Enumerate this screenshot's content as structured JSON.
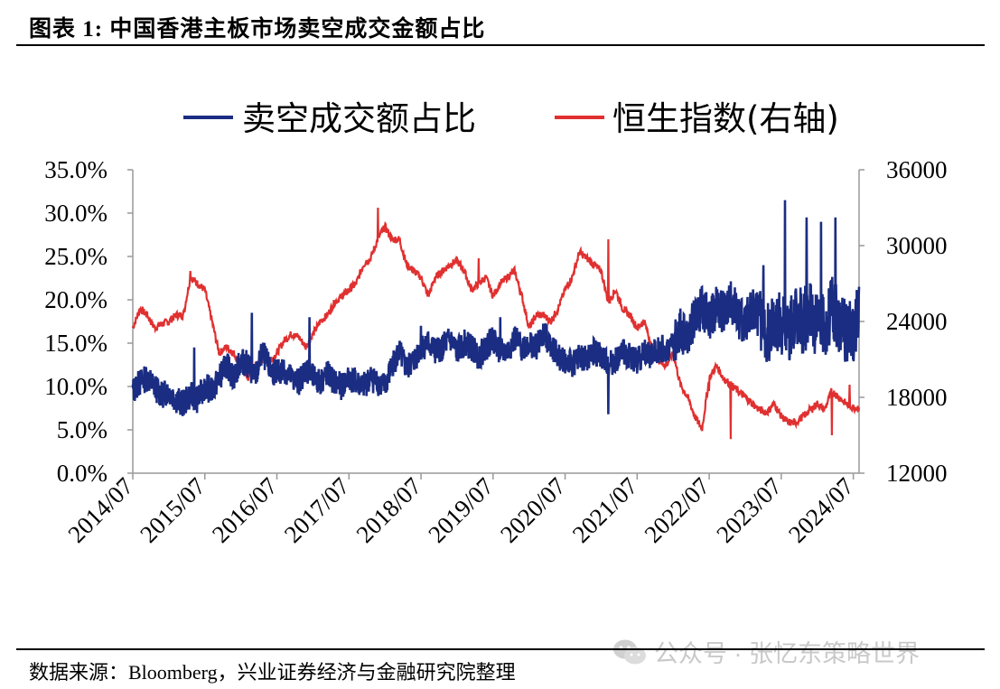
{
  "figure": {
    "title": "图表 1:  中国香港主板市场卖空成交金额占比",
    "source": "数据来源：Bloomberg，兴业证券经济与金融研究院整理",
    "watermark": "公众号 · 张忆东策略世界"
  },
  "colors": {
    "short_ratio": "#1b2d82",
    "hsi": "#e03030",
    "axis": "#999999"
  },
  "chart_data": {
    "type": "line",
    "title": "",
    "legend": {
      "position": "top-center",
      "entries": [
        "卖空成交额占比",
        "恒生指数(右轴)"
      ]
    },
    "x_tick_labels": [
      "2014/07",
      "2015/07",
      "2016/07",
      "2017/07",
      "2018/07",
      "2019/07",
      "2020/07",
      "2021/07",
      "2022/07",
      "2023/07",
      "2024/07"
    ],
    "x_range": [
      2014.5,
      2024.58
    ],
    "y_left": {
      "min": 0,
      "max": 35,
      "ticks": [
        "0.0%",
        "5.0%",
        "10.0%",
        "15.0%",
        "20.0%",
        "25.0%",
        "30.0%",
        "35.0%"
      ]
    },
    "y_right": {
      "min": 12000,
      "max": 36000,
      "ticks": [
        "12000",
        "18000",
        "24000",
        "30000",
        "36000"
      ]
    },
    "series": [
      {
        "name": "卖空成交额占比",
        "axis": "left",
        "x": [
          2014.5,
          2014.6,
          2014.7,
          2014.8,
          2014.9,
          2015.0,
          2015.1,
          2015.2,
          2015.3,
          2015.4,
          2015.5,
          2015.6,
          2015.7,
          2015.8,
          2015.9,
          2016.0,
          2016.1,
          2016.2,
          2016.3,
          2016.4,
          2016.5,
          2016.6,
          2016.7,
          2016.8,
          2016.9,
          2017.0,
          2017.1,
          2017.2,
          2017.3,
          2017.4,
          2017.5,
          2017.6,
          2017.7,
          2017.8,
          2017.9,
          2018.0,
          2018.1,
          2018.2,
          2018.3,
          2018.4,
          2018.5,
          2018.6,
          2018.7,
          2018.8,
          2018.9,
          2019.0,
          2019.1,
          2019.2,
          2019.3,
          2019.4,
          2019.5,
          2019.6,
          2019.7,
          2019.8,
          2019.9,
          2020.0,
          2020.1,
          2020.2,
          2020.3,
          2020.4,
          2020.5,
          2020.6,
          2020.7,
          2020.8,
          2020.9,
          2021.0,
          2021.1,
          2021.2,
          2021.3,
          2021.4,
          2021.5,
          2021.6,
          2021.7,
          2021.8,
          2021.9,
          2022.0,
          2022.1,
          2022.2,
          2022.3,
          2022.4,
          2022.5,
          2022.6,
          2022.7,
          2022.8,
          2022.9,
          2023.0,
          2023.1,
          2023.2,
          2023.3,
          2023.4,
          2023.5,
          2023.6,
          2023.7,
          2023.8,
          2023.9,
          2024.0,
          2024.1,
          2024.2,
          2024.3,
          2024.4,
          2024.5,
          2024.58
        ],
        "values": [
          9.5,
          10.5,
          11.0,
          10.0,
          9.0,
          9.5,
          8.5,
          8.0,
          9.0,
          8.5,
          10.0,
          9.5,
          11.0,
          12.5,
          11.0,
          13.0,
          12.5,
          11.0,
          14.0,
          12.0,
          11.5,
          12.0,
          11.0,
          10.5,
          12.0,
          11.0,
          10.5,
          11.5,
          10.5,
          10.0,
          11.0,
          10.5,
          10.0,
          11.0,
          10.5,
          10.0,
          12.5,
          14.0,
          12.0,
          13.0,
          14.5,
          15.0,
          14.0,
          14.5,
          15.5,
          14.0,
          15.0,
          14.5,
          13.5,
          14.5,
          15.5,
          14.0,
          14.0,
          15.5,
          14.5,
          15.0,
          14.5,
          16.0,
          15.0,
          13.5,
          13.0,
          12.5,
          13.5,
          13.0,
          14.0,
          13.5,
          12.5,
          13.0,
          14.0,
          13.5,
          13.0,
          14.0,
          13.5,
          14.5,
          14.0,
          15.0,
          16.0,
          15.5,
          18.0,
          19.0,
          18.0,
          19.0,
          18.5,
          20.0,
          18.0,
          17.5,
          19.0,
          18.0,
          16.0,
          17.0,
          17.5,
          16.5,
          18.0,
          17.5,
          18.5,
          17.0,
          17.0,
          19.0,
          17.5,
          16.0,
          16.5,
          19.0
        ],
        "peaks": [
          [
            2015.35,
            14.5
          ],
          [
            2016.15,
            18.5
          ],
          [
            2016.95,
            18.0
          ],
          [
            2018.5,
            17.0
          ],
          [
            2019.6,
            18.0
          ],
          [
            2021.1,
            6.8
          ],
          [
            2022.1,
            19.0
          ],
          [
            2022.6,
            20.0
          ],
          [
            2023.25,
            24.0
          ],
          [
            2023.55,
            31.5
          ],
          [
            2023.85,
            29.5
          ],
          [
            2024.05,
            29.0
          ],
          [
            2024.25,
            29.5
          ],
          [
            2024.58,
            21.5
          ]
        ]
      },
      {
        "name": "恒生指数(右轴)",
        "axis": "right",
        "x": [
          2014.5,
          2014.6,
          2014.7,
          2014.8,
          2014.9,
          2015.0,
          2015.1,
          2015.2,
          2015.3,
          2015.4,
          2015.5,
          2015.6,
          2015.7,
          2015.8,
          2015.9,
          2016.0,
          2016.1,
          2016.2,
          2016.3,
          2016.4,
          2016.5,
          2016.6,
          2016.7,
          2016.8,
          2016.9,
          2017.0,
          2017.1,
          2017.2,
          2017.3,
          2017.4,
          2017.5,
          2017.6,
          2017.7,
          2017.8,
          2017.9,
          2018.0,
          2018.1,
          2018.2,
          2018.3,
          2018.4,
          2018.5,
          2018.6,
          2018.7,
          2018.8,
          2018.9,
          2019.0,
          2019.1,
          2019.2,
          2019.3,
          2019.4,
          2019.5,
          2019.6,
          2019.7,
          2019.8,
          2019.9,
          2020.0,
          2020.1,
          2020.2,
          2020.3,
          2020.4,
          2020.5,
          2020.6,
          2020.7,
          2020.8,
          2020.9,
          2021.0,
          2021.1,
          2021.2,
          2021.3,
          2021.4,
          2021.5,
          2021.6,
          2021.7,
          2021.8,
          2021.9,
          2022.0,
          2022.1,
          2022.2,
          2022.3,
          2022.4,
          2022.5,
          2022.6,
          2022.7,
          2022.8,
          2022.9,
          2023.0,
          2023.1,
          2023.2,
          2023.3,
          2023.4,
          2023.5,
          2023.6,
          2023.7,
          2023.8,
          2023.9,
          2024.0,
          2024.1,
          2024.2,
          2024.3,
          2024.4,
          2024.5,
          2024.58
        ],
        "values": [
          23500,
          25000,
          24500,
          23500,
          23800,
          24000,
          24500,
          24500,
          27500,
          27000,
          26500,
          24000,
          21500,
          22000,
          21500,
          20500,
          19500,
          20500,
          21000,
          20800,
          21500,
          22500,
          23000,
          22800,
          22000,
          23000,
          24000,
          24500,
          25500,
          26000,
          26500,
          27000,
          28500,
          29000,
          30500,
          31500,
          30500,
          30500,
          28500,
          28000,
          27500,
          26000,
          27500,
          28000,
          28500,
          28800,
          28000,
          26500,
          27000,
          27500,
          26000,
          27000,
          27500,
          28000,
          26000,
          23500,
          24500,
          24500,
          24000,
          25000,
          26500,
          27500,
          29500,
          29000,
          28500,
          28000,
          25500,
          26500,
          25000,
          24500,
          23500,
          24000,
          22000,
          21000,
          20500,
          21500,
          19000,
          18000,
          16500,
          15500,
          19500,
          20500,
          19500,
          19000,
          18500,
          18000,
          17500,
          17000,
          16800,
          17500,
          16500,
          16000,
          16000,
          16500,
          17000,
          17500,
          17000,
          18500,
          18000,
          17500,
          17200,
          17200
        ],
        "extremes": [
          [
            2015.3,
            28000
          ],
          [
            2017.9,
            33000
          ],
          [
            2019.3,
            29000
          ],
          [
            2021.1,
            30500
          ],
          [
            2022.5,
            18500
          ],
          [
            2022.8,
            14700
          ],
          [
            2024.2,
            15000
          ],
          [
            2024.45,
            19000
          ]
        ]
      }
    ]
  }
}
